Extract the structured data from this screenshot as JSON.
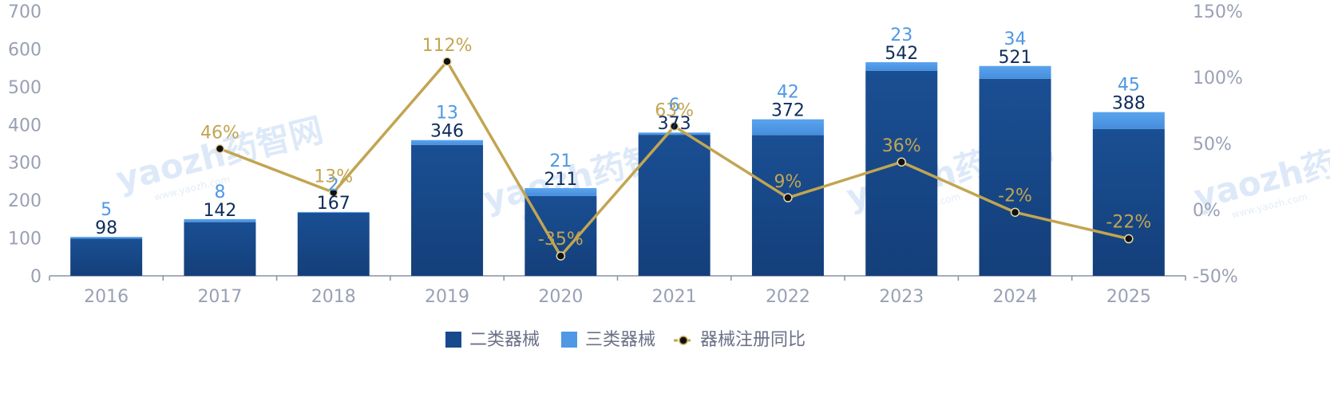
{
  "chart_data": {
    "type": "bar+line",
    "categories": [
      "2016",
      "2017",
      "2018",
      "2019",
      "2020",
      "2021",
      "2022",
      "2023",
      "2024",
      "2025"
    ],
    "series": [
      {
        "name": "二类器械",
        "type": "bar",
        "stack": "main",
        "color": "#164a8c",
        "values": [
          98,
          142,
          167,
          346,
          211,
          373,
          372,
          542,
          521,
          388
        ],
        "labels": [
          "98",
          "142",
          "167",
          "346",
          "211",
          "373",
          "372",
          "542",
          "521",
          "388"
        ]
      },
      {
        "name": "三类器械",
        "type": "bar",
        "stack": "main",
        "color": "#4e98e6",
        "values": [
          5,
          8,
          2,
          13,
          21,
          6,
          42,
          23,
          34,
          45
        ],
        "labels": [
          "5",
          "8",
          "2",
          "13",
          "21",
          "6",
          "42",
          "23",
          "34",
          "45"
        ]
      },
      {
        "name": "器械注册同比",
        "type": "line",
        "axis": "right",
        "color": "#c2a552",
        "values": [
          null,
          46,
          13,
          112,
          -35,
          63,
          9,
          36,
          -2,
          -22
        ],
        "labels": [
          "",
          "46%",
          "13%",
          "112%",
          "-35%",
          "63%",
          "9%",
          "36%",
          "-2%",
          "-22%"
        ]
      }
    ],
    "y_left": {
      "min": 0,
      "max": 700,
      "ticks": [
        "0",
        "100",
        "200",
        "300",
        "400",
        "500",
        "600",
        "700"
      ]
    },
    "y_right": {
      "min": -50,
      "max": 150,
      "ticks": [
        "-50%",
        "0%",
        "50%",
        "100%",
        "150%"
      ]
    },
    "legend": {
      "position": "bottom",
      "items": [
        "二类器械",
        "三类器械",
        "器械注册同比"
      ]
    },
    "watermark": {
      "text": "yaozh药智网",
      "subtext": "www.yaozh.com"
    }
  }
}
